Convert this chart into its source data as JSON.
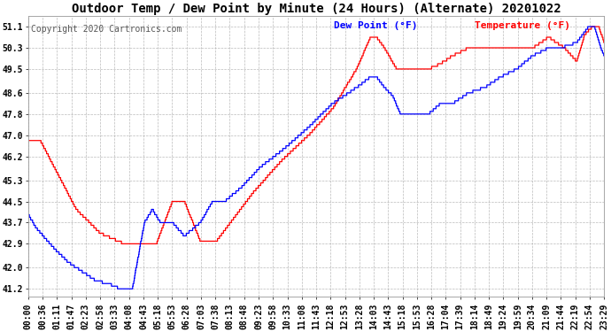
{
  "title": "Outdoor Temp / Dew Point by Minute (24 Hours) (Alternate) 20201022",
  "copyright": "Copyright 2020 Cartronics.com",
  "legend_dew": "Dew Point (°F)",
  "legend_temp": "Temperature (°F)",
  "yticks": [
    41.2,
    42.0,
    42.9,
    43.7,
    44.5,
    45.3,
    46.2,
    47.0,
    47.8,
    48.6,
    49.5,
    50.3,
    51.1
  ],
  "ylim": [
    40.9,
    51.5
  ],
  "bg_color": "#ffffff",
  "grid_color": "#aaaaaa",
  "temp_color": "#ff0000",
  "dew_color": "#0000ff",
  "title_fontsize": 10,
  "copyright_fontsize": 7,
  "legend_fontsize": 8,
  "tick_fontsize": 7,
  "xtick_labels": [
    "00:00",
    "00:36",
    "01:11",
    "01:47",
    "02:23",
    "02:58",
    "03:33",
    "04:08",
    "04:43",
    "05:18",
    "05:53",
    "06:28",
    "07:03",
    "07:38",
    "08:13",
    "08:48",
    "09:23",
    "09:58",
    "10:33",
    "11:08",
    "11:43",
    "12:18",
    "12:53",
    "13:28",
    "14:03",
    "14:43",
    "15:18",
    "15:53",
    "16:28",
    "17:04",
    "17:39",
    "18:14",
    "18:49",
    "19:24",
    "19:59",
    "20:34",
    "21:09",
    "21:44",
    "22:19",
    "22:54",
    "23:29"
  ],
  "num_minutes": 1440
}
